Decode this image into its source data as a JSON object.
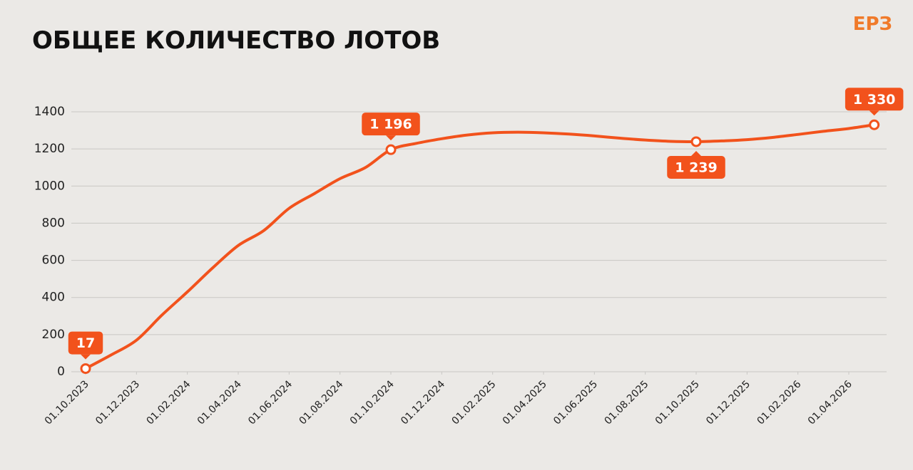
{
  "logo": "ЕРЗ",
  "chart_data": {
    "type": "line",
    "title": "ОБЩЕЕ КОЛИЧЕСТВО ЛОТОВ",
    "x": [
      "01.10.2023",
      "01.11.2023",
      "01.12.2023",
      "01.01.2024",
      "01.02.2024",
      "01.03.2024",
      "01.04.2024",
      "01.05.2024",
      "01.06.2024",
      "01.07.2024",
      "01.08.2024",
      "01.09.2024",
      "01.10.2024",
      "01.11.2024",
      "01.12.2024",
      "01.01.2025",
      "01.02.2025",
      "01.03.2025",
      "01.04.2025",
      "01.05.2025",
      "01.06.2025",
      "01.07.2025",
      "01.08.2025",
      "01.09.2025",
      "01.10.2025",
      "01.11.2025",
      "01.12.2025",
      "01.01.2026",
      "01.02.2026",
      "01.03.2026",
      "01.04.2026",
      "01.05.2026"
    ],
    "values": [
      17,
      90,
      170,
      305,
      430,
      560,
      680,
      760,
      880,
      960,
      1040,
      1100,
      1196,
      1230,
      1255,
      1275,
      1287,
      1290,
      1287,
      1280,
      1270,
      1258,
      1248,
      1241,
      1239,
      1243,
      1250,
      1262,
      1278,
      1295,
      1310,
      1330
    ],
    "value_labels": [
      "17",
      null,
      null,
      null,
      null,
      null,
      null,
      null,
      null,
      null,
      null,
      null,
      "1 196",
      null,
      null,
      null,
      null,
      null,
      null,
      null,
      null,
      null,
      null,
      null,
      "1 239",
      null,
      null,
      null,
      null,
      null,
      null,
      "1 330"
    ],
    "color": "#f2521c",
    "ylim": [
      0,
      1400
    ],
    "yticks": [
      0,
      200,
      400,
      600,
      800,
      1000,
      1200,
      1400
    ],
    "xticks": [
      "01.10.2023",
      "01.12.2023",
      "01.02.2024",
      "01.04.2024",
      "01.06.2024",
      "01.08.2024",
      "01.10.2024",
      "01.12.2024",
      "01.02.2025",
      "01.04.2025",
      "01.06.2025",
      "01.08.2025",
      "01.10.2025",
      "01.12.2025",
      "01.02.2026",
      "01.04.2026"
    ],
    "grid": true
  }
}
